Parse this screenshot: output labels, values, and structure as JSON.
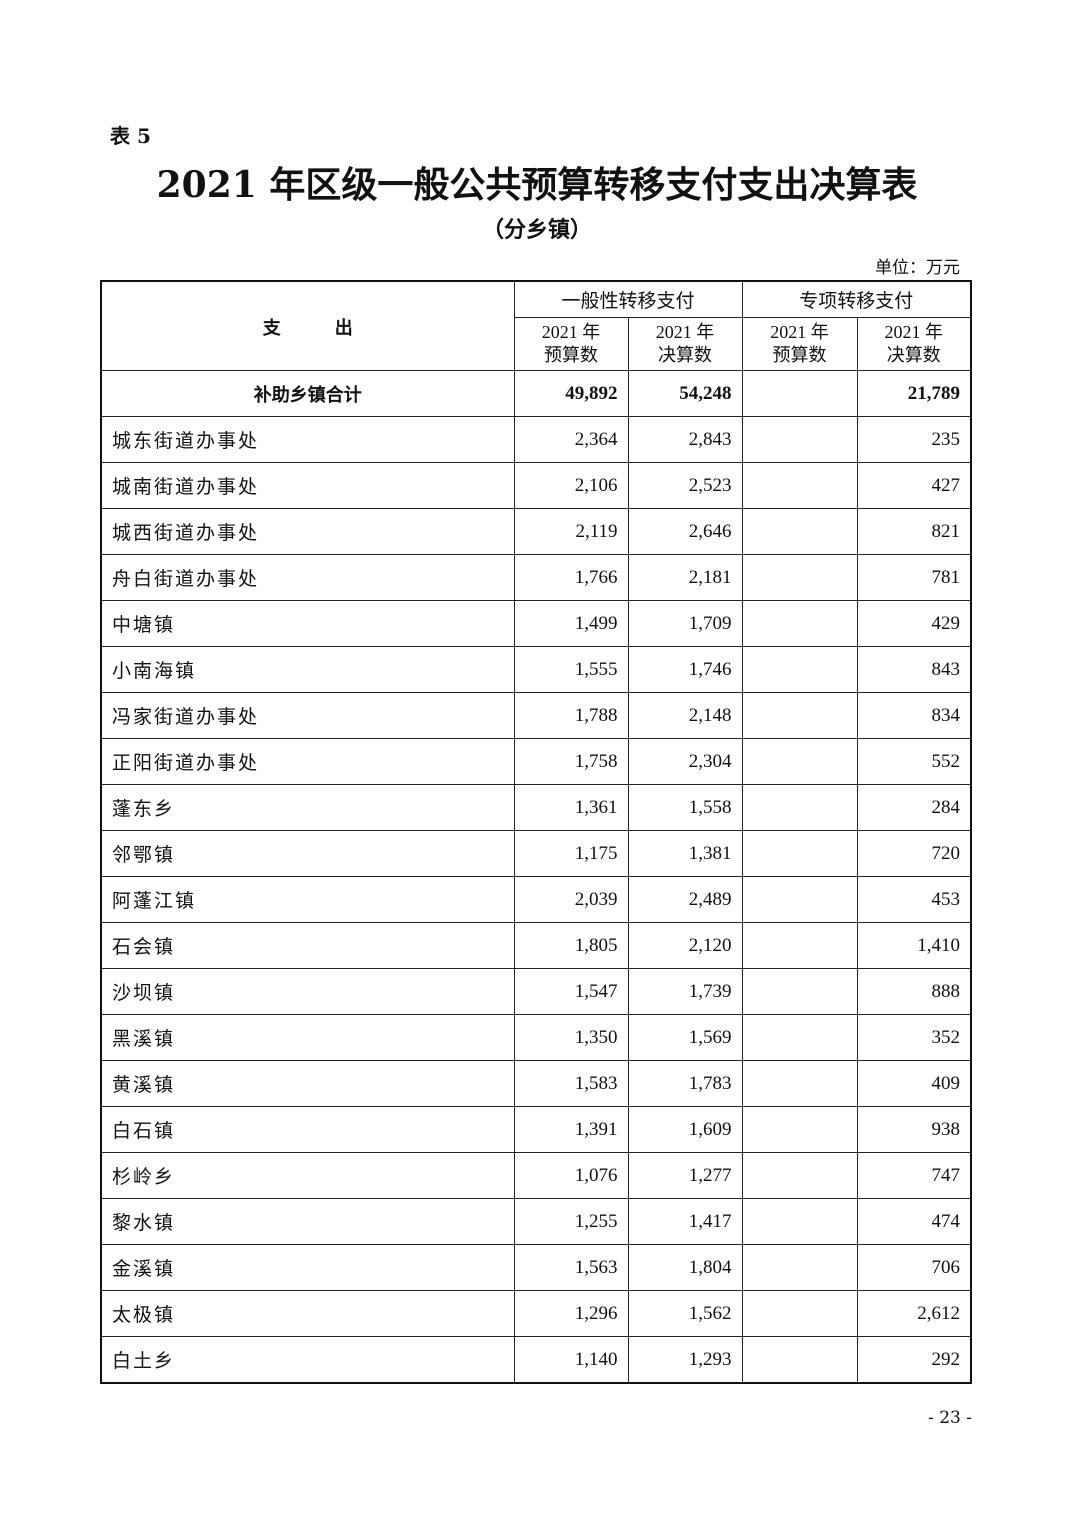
{
  "document": {
    "table_label": "表 5",
    "title": "2021 年区级一般公共预算转移支付支出决算表",
    "subtitle": "（分乡镇）",
    "unit": "单位：万元",
    "page_number": "- 23 -"
  },
  "table": {
    "header": {
      "expense": "支　　　出",
      "general_transfer": "一般性转移支付",
      "special_transfer": "专项转移支付",
      "sub_columns": [
        "2021 年\n预算数",
        "2021 年\n决算数",
        "2021 年\n预算数",
        "2021 年\n决算数"
      ]
    },
    "total": {
      "name": "补助乡镇合计",
      "values": [
        "49,892",
        "54,248",
        "",
        "21,789"
      ]
    },
    "rows": [
      {
        "name": "城东街道办事处",
        "values": [
          "2,364",
          "2,843",
          "",
          "235"
        ]
      },
      {
        "name": "城南街道办事处",
        "values": [
          "2,106",
          "2,523",
          "",
          "427"
        ]
      },
      {
        "name": "城西街道办事处",
        "values": [
          "2,119",
          "2,646",
          "",
          "821"
        ]
      },
      {
        "name": "舟白街道办事处",
        "values": [
          "1,766",
          "2,181",
          "",
          "781"
        ]
      },
      {
        "name": "中塘镇",
        "values": [
          "1,499",
          "1,709",
          "",
          "429"
        ]
      },
      {
        "name": "小南海镇",
        "values": [
          "1,555",
          "1,746",
          "",
          "843"
        ]
      },
      {
        "name": "冯家街道办事处",
        "values": [
          "1,788",
          "2,148",
          "",
          "834"
        ]
      },
      {
        "name": "正阳街道办事处",
        "values": [
          "1,758",
          "2,304",
          "",
          "552"
        ]
      },
      {
        "name": "蓬东乡",
        "values": [
          "1,361",
          "1,558",
          "",
          "284"
        ]
      },
      {
        "name": "邻鄂镇",
        "values": [
          "1,175",
          "1,381",
          "",
          "720"
        ]
      },
      {
        "name": "阿蓬江镇",
        "values": [
          "2,039",
          "2,489",
          "",
          "453"
        ]
      },
      {
        "name": "石会镇",
        "values": [
          "1,805",
          "2,120",
          "",
          "1,410"
        ]
      },
      {
        "name": "沙坝镇",
        "values": [
          "1,547",
          "1,739",
          "",
          "888"
        ]
      },
      {
        "name": "黑溪镇",
        "values": [
          "1,350",
          "1,569",
          "",
          "352"
        ]
      },
      {
        "name": "黄溪镇",
        "values": [
          "1,583",
          "1,783",
          "",
          "409"
        ]
      },
      {
        "name": "白石镇",
        "values": [
          "1,391",
          "1,609",
          "",
          "938"
        ]
      },
      {
        "name": "杉岭乡",
        "values": [
          "1,076",
          "1,277",
          "",
          "747"
        ]
      },
      {
        "name": "黎水镇",
        "values": [
          "1,255",
          "1,417",
          "",
          "474"
        ]
      },
      {
        "name": "金溪镇",
        "values": [
          "1,563",
          "1,804",
          "",
          "706"
        ]
      },
      {
        "name": "太极镇",
        "values": [
          "1,296",
          "1,562",
          "",
          "2,612"
        ]
      },
      {
        "name": "白土乡",
        "values": [
          "1,140",
          "1,293",
          "",
          "292"
        ]
      }
    ]
  }
}
